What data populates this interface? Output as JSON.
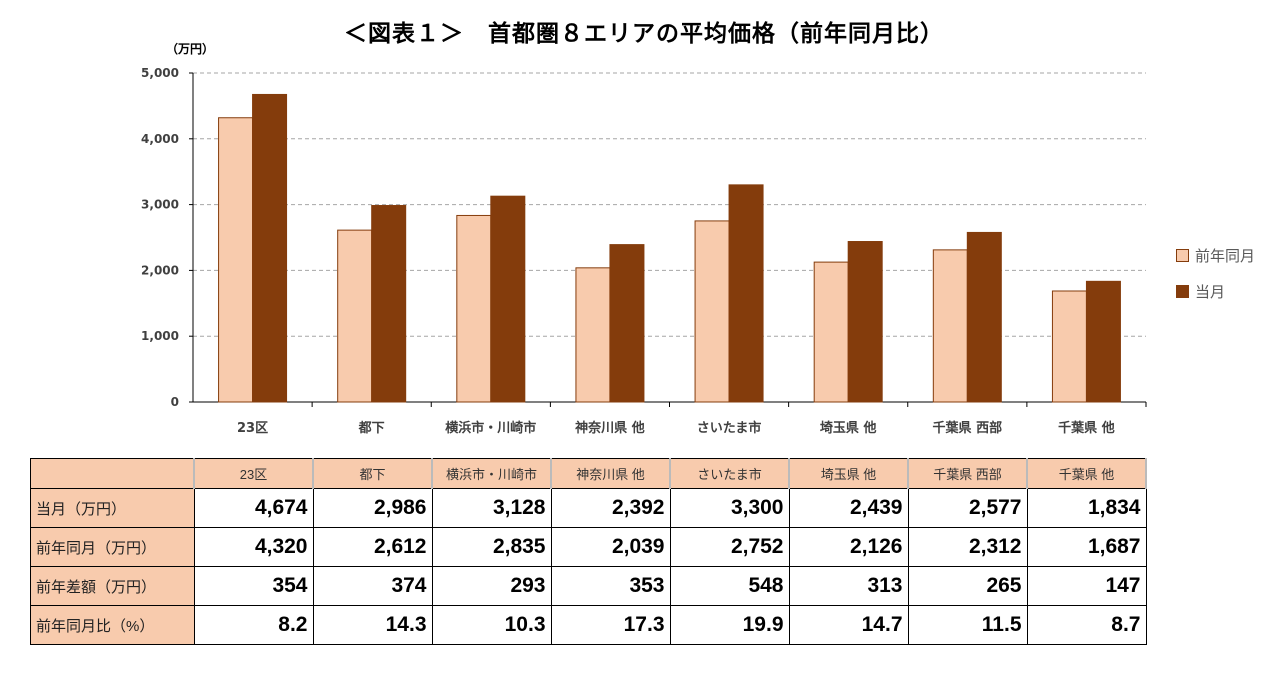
{
  "chart_data": {
    "type": "bar",
    "title": "＜図表１＞　首都圏８エリアの平均価格（前年同月比）",
    "ylabel": "（万円）",
    "ylim": [
      0,
      5000
    ],
    "yticks": [
      "0",
      "1,000",
      "2,000",
      "3,000",
      "4,000",
      "5,000"
    ],
    "grid": true,
    "legend_position": "right",
    "categories": [
      "23区",
      "都下",
      "横浜市・川崎市",
      "神奈川県 他",
      "さいたま市",
      "埼玉県 他",
      "千葉県 西部",
      "千葉県 他"
    ],
    "series": [
      {
        "name": "前年同月",
        "color": "#f8cbad",
        "values": [
          4320,
          2612,
          2835,
          2039,
          2752,
          2126,
          2312,
          1687
        ]
      },
      {
        "name": "当月",
        "color": "#843c0c",
        "values": [
          4674,
          2986,
          3128,
          2392,
          3300,
          2439,
          2577,
          1834
        ]
      }
    ]
  },
  "table": {
    "rows": [
      {
        "label": "当月（万円）",
        "values": [
          "4,674",
          "2,986",
          "3,128",
          "2,392",
          "3,300",
          "2,439",
          "2,577",
          "1,834"
        ]
      },
      {
        "label": "前年同月（万円）",
        "values": [
          "4,320",
          "2,612",
          "2,835",
          "2,039",
          "2,752",
          "2,126",
          "2,312",
          "1,687"
        ]
      },
      {
        "label": "前年差額（万円）",
        "values": [
          "354",
          "374",
          "293",
          "353",
          "548",
          "313",
          "265",
          "147"
        ]
      },
      {
        "label": "前年同月比（%）",
        "values": [
          "8.2",
          "14.3",
          "10.3",
          "17.3",
          "19.9",
          "14.7",
          "11.5",
          "8.7"
        ]
      }
    ]
  }
}
